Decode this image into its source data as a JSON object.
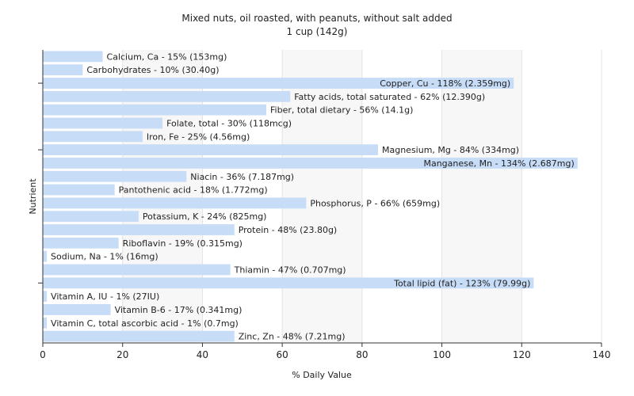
{
  "chart_data": {
    "type": "bar",
    "orientation": "horizontal",
    "title": "Mixed nuts, oil roasted, with peanuts, without salt added",
    "subtitle": "1 cup (142g)",
    "xlabel": "% Daily Value",
    "ylabel": "Nutrient",
    "xlim": [
      0,
      140
    ],
    "xticks": [
      "0",
      "20",
      "40",
      "60",
      "80",
      "100",
      "120",
      "140"
    ],
    "grid": true,
    "bar_color": "#c6dcf7",
    "categories": [
      "Calcium, Ca",
      "Carbohydrates",
      "Copper, Cu",
      "Fatty acids, total saturated",
      "Fiber, total dietary",
      "Folate, total",
      "Iron, Fe",
      "Magnesium, Mg",
      "Manganese, Mn",
      "Niacin",
      "Pantothenic acid",
      "Phosphorus, P",
      "Potassium, K",
      "Protein",
      "Riboflavin",
      "Sodium, Na",
      "Thiamin",
      "Total lipid (fat)",
      "Vitamin A, IU",
      "Vitamin B-6",
      "Vitamin C, total ascorbic acid",
      "Zinc, Zn"
    ],
    "values": [
      15,
      10,
      118,
      62,
      56,
      30,
      25,
      84,
      134,
      36,
      18,
      66,
      24,
      48,
      19,
      1,
      47,
      123,
      1,
      17,
      1,
      48
    ],
    "labels": [
      "Calcium, Ca - 15% (153mg)",
      "Carbohydrates - 10% (30.40g)",
      "Copper, Cu - 118% (2.359mg)",
      "Fatty acids, total saturated - 62% (12.390g)",
      "Fiber, total dietary - 56% (14.1g)",
      "Folate, total - 30% (118mcg)",
      "Iron, Fe - 25% (4.56mg)",
      "Magnesium, Mg - 84% (334mg)",
      "Manganese, Mn - 134% (2.687mg)",
      "Niacin - 36% (7.187mg)",
      "Pantothenic acid - 18% (1.772mg)",
      "Phosphorus, P - 66% (659mg)",
      "Potassium, K - 24% (825mg)",
      "Protein - 48% (23.80g)",
      "Riboflavin - 19% (0.315mg)",
      "Sodium, Na - 1% (16mg)",
      "Thiamin - 47% (0.707mg)",
      "Total lipid (fat) - 123% (79.99g)",
      "Vitamin A, IU - 1% (27IU)",
      "Vitamin B-6 - 17% (0.341mg)",
      "Vitamin C, total ascorbic acid - 1% (0.7mg)",
      "Zinc, Zn - 48% (7.21mg)"
    ]
  }
}
